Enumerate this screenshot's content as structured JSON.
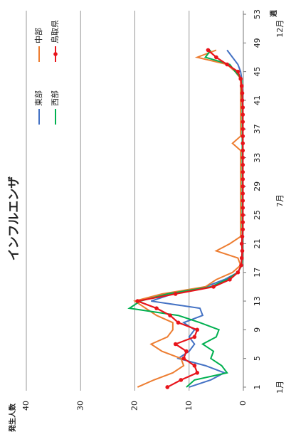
{
  "chart_data": {
    "type": "line",
    "title": "インフルエンザ",
    "x_label": "週",
    "y_label": "発生人数",
    "x": [
      1,
      2,
      3,
      4,
      5,
      6,
      7,
      8,
      9,
      10,
      11,
      12,
      13,
      14,
      15,
      16,
      17,
      18,
      19,
      20,
      21,
      22,
      23,
      24,
      25,
      26,
      27,
      28,
      29,
      30,
      31,
      32,
      33,
      34,
      35,
      36,
      37,
      38,
      39,
      40,
      41,
      42,
      43,
      44,
      45,
      46,
      47,
      48
    ],
    "series": [
      {
        "name": "東部",
        "color": "#4472c4",
        "values": [
          10,
          6,
          3.5,
          7,
          12,
          10,
          9,
          10,
          9,
          11,
          7.5,
          8,
          17,
          13,
          7,
          3.5,
          1,
          0.3,
          0.3,
          0.2,
          0.3,
          0.2,
          0.2,
          0.2,
          0.2,
          0.2,
          0.2,
          0.2,
          0.2,
          0.2,
          0.2,
          0.2,
          0.2,
          0.2,
          0.2,
          0.2,
          0.2,
          0.2,
          0.2,
          0.2,
          0.2,
          0.2,
          0.3,
          0.3,
          0.5,
          1,
          2,
          3
        ]
      },
      {
        "name": "中部",
        "color": "#ed7d31",
        "values": [
          19.5,
          16.5,
          13,
          11,
          11.5,
          15,
          17,
          14,
          13,
          13,
          16,
          18,
          20,
          15,
          7,
          5,
          2,
          0.5,
          1,
          5,
          2.5,
          0.5,
          0.5,
          0.5,
          0.5,
          0.5,
          0.5,
          0.5,
          0.5,
          0.5,
          0.5,
          0.5,
          0.5,
          0.5,
          2,
          0.5,
          0.5,
          0.5,
          0.5,
          0.5,
          0.5,
          0.5,
          0.5,
          0.5,
          1.5,
          3,
          8.5,
          5
        ]
      },
      {
        "name": "西部",
        "color": "#00b050",
        "values": [
          10.5,
          9,
          3,
          4,
          6,
          5.5,
          7.5,
          5,
          4.5,
          8,
          12,
          21,
          19,
          14,
          6,
          3,
          1,
          0.3,
          0.2,
          0.2,
          0.2,
          0.2,
          0.2,
          0.2,
          0.2,
          0.2,
          0.2,
          0.2,
          0.2,
          0.2,
          0.2,
          0.2,
          0.2,
          0.2,
          0.2,
          0.2,
          0.2,
          0.2,
          0.2,
          0.2,
          0.2,
          0.3,
          0.3,
          0.3,
          1.5,
          2.5,
          7,
          6
        ]
      },
      {
        "name": "鳥取県",
        "color": "#e8141b",
        "markers": true,
        "values": [
          14,
          11.5,
          8.5,
          9,
          11,
          10.5,
          12.5,
          9,
          8.5,
          12,
          13.5,
          16,
          19.5,
          12.5,
          5.5,
          2.5,
          1,
          0.4,
          0.3,
          0.2,
          0.3,
          0.2,
          0.1,
          0.1,
          0.1,
          0.1,
          0.1,
          0.1,
          0.1,
          0.1,
          0.1,
          0.1,
          0.1,
          0.1,
          0.1,
          0.1,
          0.1,
          0.1,
          0.1,
          0.1,
          0.2,
          0.2,
          0.3,
          0.5,
          1,
          3,
          5,
          6.5
        ]
      }
    ],
    "xlim": [
      0.5,
      53.5
    ],
    "xticks": [
      1,
      5,
      9,
      13,
      17,
      21,
      25,
      29,
      33,
      37,
      41,
      45,
      49,
      53
    ],
    "month_ticks": [
      {
        "value": 1,
        "label": "1月"
      },
      {
        "value": 27,
        "label": "7月"
      },
      {
        "value": 51,
        "label": "12月"
      }
    ],
    "ylim": [
      0,
      40
    ],
    "yticks": [
      0,
      10,
      20,
      30,
      40
    ],
    "grid": true,
    "legend": "top-right"
  }
}
